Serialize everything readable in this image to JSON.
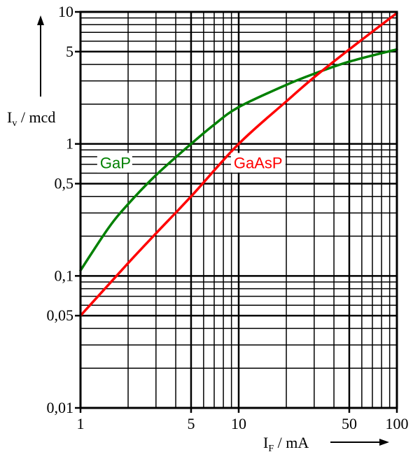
{
  "chart_data": {
    "type": "line",
    "xscale": "log",
    "yscale": "log",
    "xlim": [
      1,
      100
    ],
    "ylim": [
      0.01,
      10
    ],
    "grid": true,
    "x_ticks": [
      {
        "value": 1,
        "label": "1"
      },
      {
        "value": 5,
        "label": "5"
      },
      {
        "value": 10,
        "label": "10"
      },
      {
        "value": 50,
        "label": "50"
      },
      {
        "value": 100,
        "label": "100"
      }
    ],
    "y_ticks": [
      {
        "value": 0.01,
        "label": "0,01"
      },
      {
        "value": 0.05,
        "label": "0,05"
      },
      {
        "value": 0.1,
        "label": "0,1"
      },
      {
        "value": 0.5,
        "label": "0,5"
      },
      {
        "value": 1,
        "label": "1"
      },
      {
        "value": 5,
        "label": "5"
      },
      {
        "value": 10,
        "label": "10"
      }
    ],
    "xlabel": {
      "main": "I",
      "sub": "F",
      "unit": " / mA"
    },
    "ylabel": {
      "main": "I",
      "sub": "v",
      "unit": " / mcd"
    },
    "series": [
      {
        "name": "GaP",
        "color": "#008000",
        "x": [
          1,
          1.5,
          2,
          3,
          5,
          7,
          10,
          20,
          30,
          50,
          100
        ],
        "y": [
          0.11,
          0.23,
          0.35,
          0.58,
          1.0,
          1.4,
          1.9,
          2.8,
          3.4,
          4.2,
          5.2
        ]
      },
      {
        "name": "GaAsP",
        "color": "#ff0000",
        "x": [
          1,
          2,
          3,
          5,
          10,
          20,
          30,
          50,
          100
        ],
        "y": [
          0.05,
          0.125,
          0.21,
          0.4,
          1.0,
          2.1,
          3.2,
          5.2,
          9.8
        ]
      }
    ]
  }
}
